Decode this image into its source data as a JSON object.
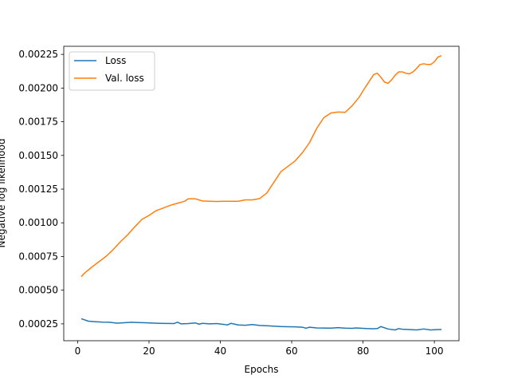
{
  "chart_data": {
    "type": "line",
    "title": "",
    "xlabel": "Epochs",
    "ylabel": "Negative log likelihood",
    "xlim": [
      -3.9,
      106.9
    ],
    "ylim": [
      0.000125,
      0.00231
    ],
    "xticks": [
      0,
      20,
      40,
      60,
      80,
      100
    ],
    "yticks": [
      0.00025,
      0.0005,
      0.00075,
      0.001,
      0.00125,
      0.0015,
      0.00175,
      0.002,
      0.00225
    ],
    "ytick_labels": [
      "0.00025",
      "0.00050",
      "0.00075",
      "0.00100",
      "0.00125",
      "0.00150",
      "0.00175",
      "0.00200",
      "0.00225"
    ],
    "grid": false,
    "legend_position": "top-left",
    "series": [
      {
        "name": "Loss",
        "color": "#1f77b4",
        "x": [
          1,
          3,
          5,
          7,
          9,
          11,
          13,
          15,
          17,
          19,
          21,
          23,
          25,
          27,
          28,
          29,
          31,
          33,
          34,
          35,
          37,
          39,
          41,
          42,
          43,
          45,
          47,
          49,
          51,
          53,
          55,
          57,
          59,
          61,
          63,
          64,
          65,
          67,
          69,
          71,
          73,
          75,
          77,
          78,
          79,
          81,
          83,
          84,
          85,
          87,
          89,
          90,
          91,
          93,
          95,
          97,
          99,
          101,
          102
        ],
        "y": [
          0.000288,
          0.00027,
          0.000266,
          0.000263,
          0.000262,
          0.000255,
          0.000258,
          0.000262,
          0.00026,
          0.000258,
          0.000256,
          0.000254,
          0.000253,
          0.000252,
          0.000262,
          0.00025,
          0.000252,
          0.000257,
          0.000248,
          0.000254,
          0.00025,
          0.000252,
          0.000246,
          0.000242,
          0.000254,
          0.000242,
          0.00024,
          0.000245,
          0.000238,
          0.000236,
          0.000233,
          0.00023,
          0.000229,
          0.000228,
          0.000225,
          0.000218,
          0.000225,
          0.00022,
          0.000219,
          0.000218,
          0.000222,
          0.000218,
          0.000217,
          0.00022,
          0.000218,
          0.000215,
          0.000214,
          0.000215,
          0.00023,
          0.000212,
          0.000205,
          0.000215,
          0.00021,
          0.000208,
          0.000205,
          0.000212,
          0.000205,
          0.000208,
          0.000208
        ]
      },
      {
        "name": "Val. loss",
        "color": "#ff7f0e",
        "x": [
          1,
          2,
          4,
          6,
          8,
          10,
          12,
          14,
          16,
          18,
          20,
          22,
          24,
          26,
          28,
          30,
          31,
          33,
          35,
          37,
          39,
          41,
          43,
          45,
          47,
          49,
          51,
          53,
          55,
          57,
          59,
          61,
          63,
          65,
          67,
          69,
          71,
          73,
          75,
          77,
          79,
          80,
          81,
          82,
          83,
          84,
          85,
          86,
          87,
          88,
          89,
          90,
          91,
          92,
          93,
          94,
          95,
          96,
          97,
          98,
          99,
          100,
          101,
          102
        ],
        "y": [
          0.0006,
          0.000628,
          0.000672,
          0.000712,
          0.000752,
          0.000802,
          0.00086,
          0.00091,
          0.00097,
          0.001025,
          0.001055,
          0.00109,
          0.00111,
          0.00113,
          0.001145,
          0.00116,
          0.001178,
          0.001178,
          0.001162,
          0.00116,
          0.001158,
          0.00116,
          0.00116,
          0.00116,
          0.00117,
          0.00117,
          0.00118,
          0.00122,
          0.0013,
          0.00138,
          0.00142,
          0.00146,
          0.00152,
          0.001595,
          0.0017,
          0.00178,
          0.001815,
          0.001822,
          0.00182,
          0.00187,
          0.001935,
          0.00198,
          0.00202,
          0.00206,
          0.0021,
          0.00211,
          0.00208,
          0.002045,
          0.002035,
          0.00206,
          0.002095,
          0.00212,
          0.00212,
          0.00211,
          0.002105,
          0.00212,
          0.002145,
          0.002175,
          0.00218,
          0.002175,
          0.002175,
          0.002195,
          0.00223,
          0.00224
        ]
      }
    ]
  }
}
